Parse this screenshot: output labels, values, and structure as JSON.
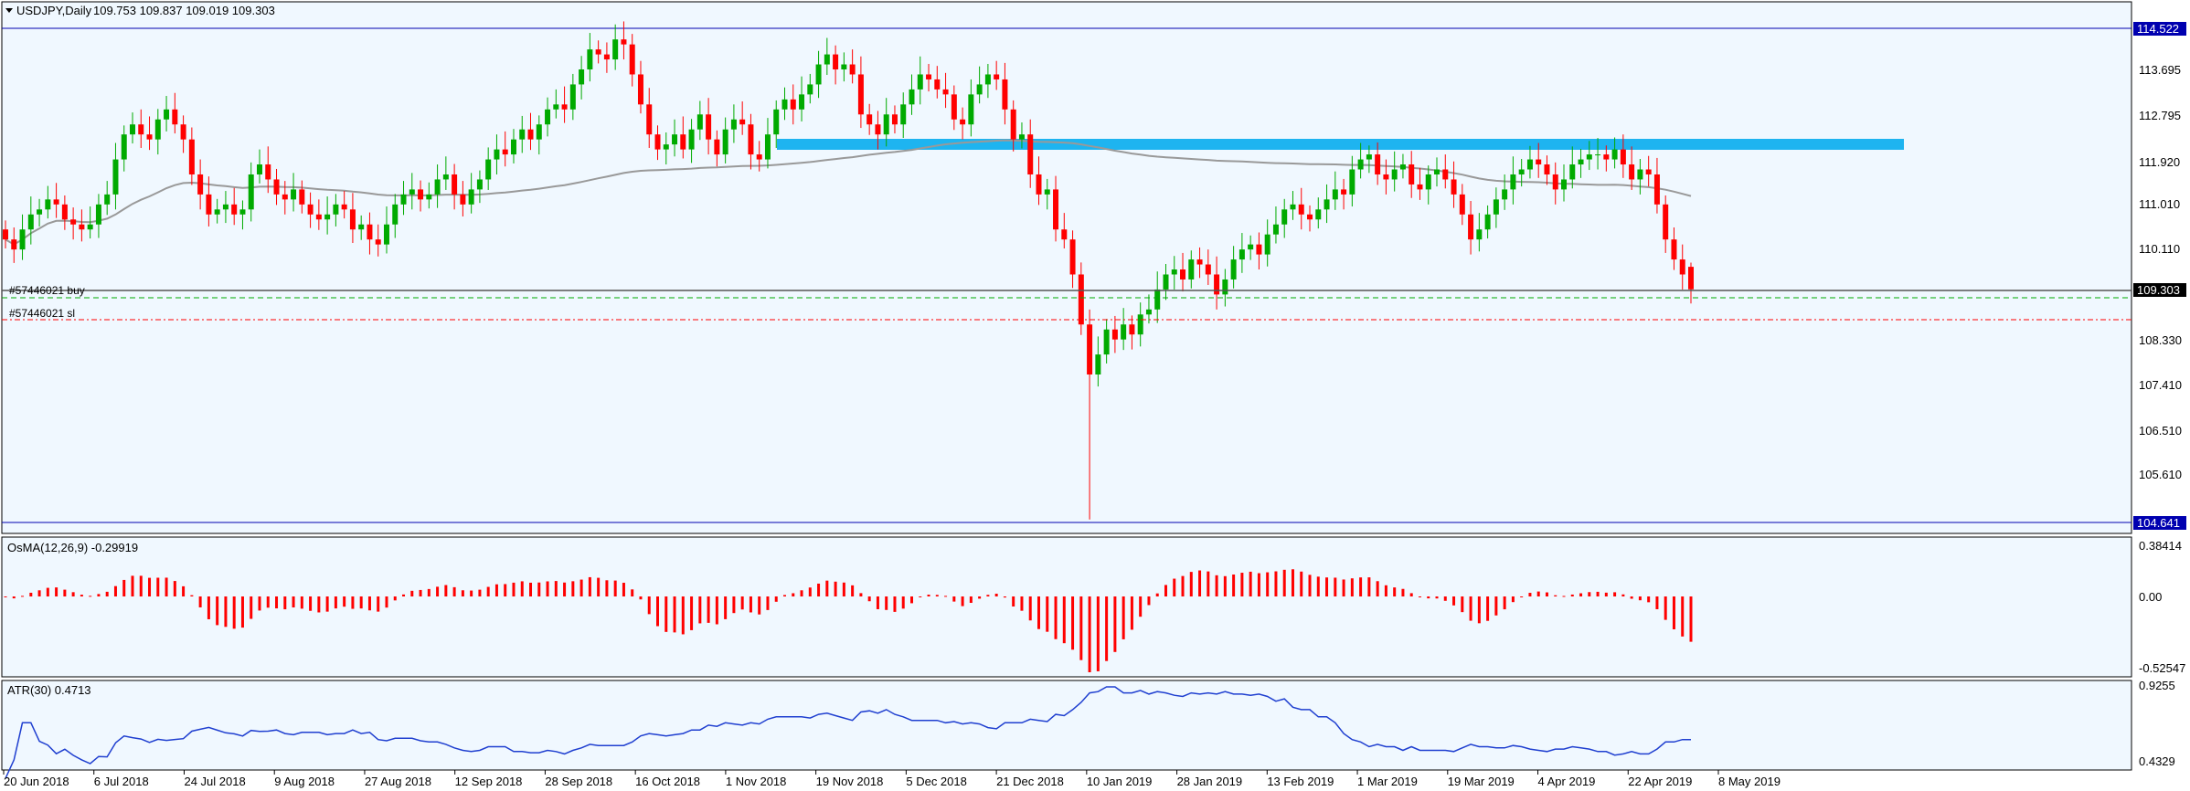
{
  "header": {
    "symbol_timeframe": "USDJPY,Daily",
    "ohlc": "109.753 109.837 109.019 109.303"
  },
  "price_axis": {
    "labels": [
      "114.522",
      "113.695",
      "112.795",
      "111.920",
      "111.010",
      "110.110",
      "109.303",
      "108.330",
      "107.410",
      "106.510",
      "105.610",
      "104.641"
    ],
    "high_tag": "114.522",
    "low_tag": "104.641",
    "current_tag": "109.303"
  },
  "orders": {
    "buy_label": "#57446021 buy",
    "sl_label": "#57446021 sl"
  },
  "osma": {
    "title": "OsMA(12,26,9) -0.29919",
    "axis_labels": [
      "0.38414",
      "0.00",
      "-0.52547"
    ]
  },
  "atr": {
    "title": "ATR(30) 0.4713",
    "axis_labels": [
      "0.9255",
      "0.4329"
    ]
  },
  "date_axis": {
    "labels": [
      "20 Jun 2018",
      "6 Jul 2018",
      "24 Jul 2018",
      "9 Aug 2018",
      "27 Aug 2018",
      "12 Sep 2018",
      "28 Sep 2018",
      "16 Oct 2018",
      "1 Nov 2018",
      "19 Nov 2018",
      "5 Dec 2018",
      "21 Dec 2018",
      "10 Jan 2019",
      "28 Jan 2019",
      "13 Feb 2019",
      "1 Mar 2019",
      "19 Mar 2019",
      "4 Apr 2019",
      "22 Apr 2019",
      "8 May 2019"
    ]
  },
  "colors": {
    "background": "#f0f8ff",
    "bull": "#00aa00",
    "bear": "#ff0000",
    "resistance_zone": "#1eb4f0",
    "moving_average": "#999999",
    "atr_line": "#1f3fd0",
    "tag_bg": "#0000b0"
  },
  "chart_data": {
    "type": "candlestick",
    "symbol": "USDJPY",
    "timeframe": "Daily",
    "last_ohlc": {
      "open": 109.753,
      "high": 109.837,
      "low": 109.019,
      "close": 109.303
    },
    "price_range": [
      104.641,
      114.522
    ],
    "closes": [
      110.3,
      110.1,
      110.5,
      110.8,
      110.9,
      111.1,
      111.0,
      110.7,
      110.6,
      110.5,
      110.6,
      111.0,
      111.2,
      111.9,
      112.4,
      112.6,
      112.4,
      112.3,
      112.7,
      112.9,
      112.6,
      112.3,
      111.6,
      111.2,
      110.8,
      110.9,
      111.0,
      110.8,
      110.9,
      111.6,
      111.8,
      111.5,
      111.2,
      111.1,
      111.3,
      111.0,
      110.8,
      110.7,
      110.8,
      111.0,
      110.9,
      110.5,
      110.6,
      110.3,
      110.2,
      110.6,
      111.0,
      111.2,
      111.3,
      111.1,
      111.2,
      111.5,
      111.6,
      111.2,
      111.0,
      111.3,
      111.5,
      111.9,
      112.1,
      112.0,
      112.3,
      112.5,
      112.3,
      112.6,
      112.9,
      113.0,
      112.9,
      113.4,
      113.7,
      114.1,
      114.0,
      113.9,
      114.3,
      114.2,
      113.6,
      113.0,
      112.4,
      112.1,
      112.2,
      112.4,
      112.1,
      112.5,
      112.8,
      112.3,
      112.0,
      112.5,
      112.7,
      112.6,
      112.0,
      111.9,
      112.4,
      112.9,
      113.1,
      112.9,
      113.2,
      113.4,
      113.8,
      114.0,
      113.7,
      113.8,
      113.6,
      112.8,
      112.6,
      112.4,
      112.8,
      112.6,
      113.0,
      113.3,
      113.6,
      113.5,
      113.3,
      113.2,
      112.7,
      112.6,
      113.2,
      113.4,
      113.6,
      113.5,
      112.9,
      112.3,
      112.4,
      111.6,
      111.2,
      111.3,
      110.5,
      110.3,
      109.6,
      108.6,
      107.6,
      108.0,
      108.5,
      108.3,
      108.6,
      108.4,
      108.8,
      108.9,
      109.3,
      109.6,
      109.7,
      109.5,
      109.9,
      109.8,
      109.6,
      109.2,
      109.5,
      109.9,
      110.1,
      110.2,
      110.0,
      110.4,
      110.6,
      110.9,
      111.0,
      110.8,
      110.7,
      110.9,
      111.1,
      111.3,
      111.2,
      111.7,
      111.9,
      112.0,
      111.6,
      111.5,
      111.7,
      111.8,
      111.4,
      111.3,
      111.6,
      111.7,
      111.5,
      111.2,
      110.8,
      110.3,
      110.5,
      110.8,
      111.1,
      111.3,
      111.6,
      111.7,
      111.9,
      111.8,
      111.6,
      111.3,
      111.5,
      111.8,
      111.9,
      112.0,
      112.0,
      111.9,
      112.1,
      111.8,
      111.5,
      111.7,
      111.6,
      111.0,
      110.3,
      109.9,
      109.6,
      109.303
    ]
  }
}
